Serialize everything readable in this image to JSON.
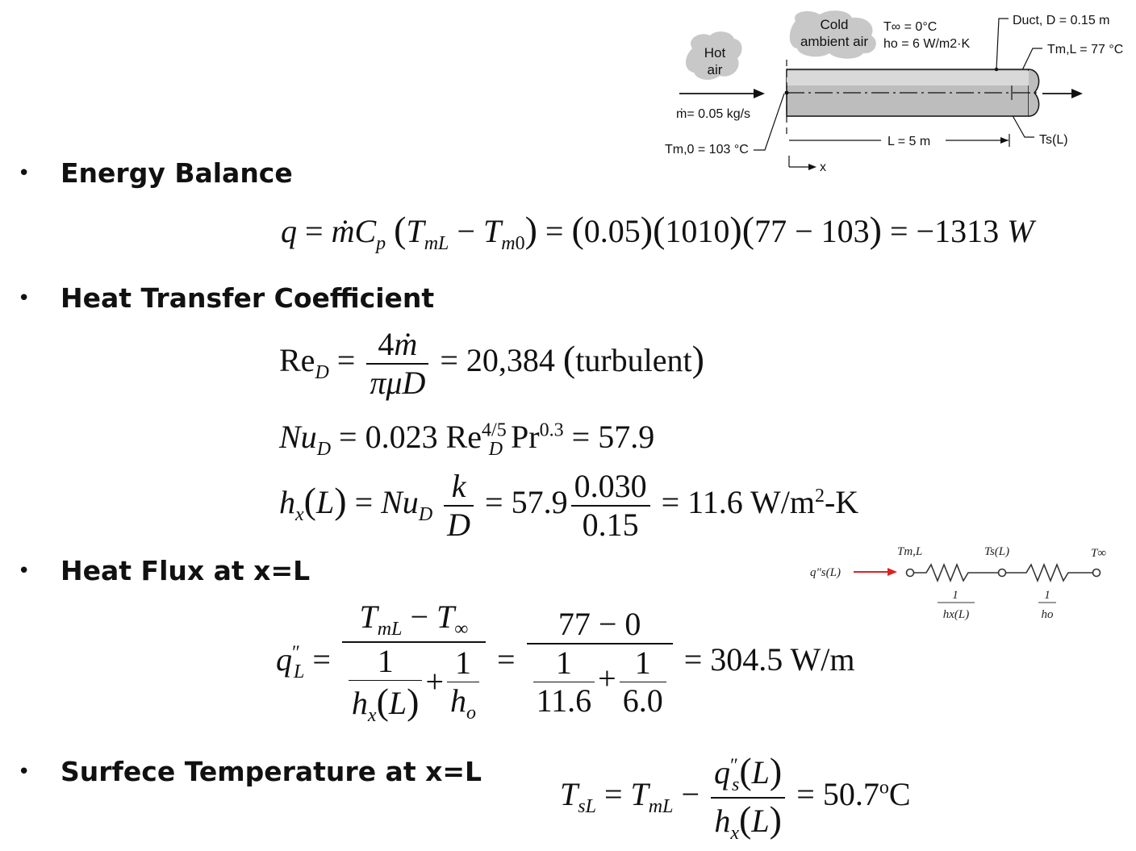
{
  "diagram": {
    "hot_air": [
      "Hot",
      "air"
    ],
    "cold_air": [
      "Cold",
      "ambient air"
    ],
    "t_inf": "T∞ = 0°C",
    "h_o": "ho = 6 W/m2·K",
    "duct": "Duct, D = 0.15  m",
    "tml": "Tm,L = 77 °C",
    "mdot": "ṁ= 0.05 kg/s",
    "tm0": "Tm,0 = 103 °C",
    "length": "L = 5 m",
    "ts": "Ts(L)",
    "x_axis": "x"
  },
  "circuit": {
    "flux": "q\"s(L)",
    "node1": "Tm,L",
    "node2": "Ts(L)",
    "node3": "T∞",
    "r1": "hx(L)",
    "r2": "ho",
    "one": "1"
  },
  "sections": [
    {
      "heading": "Energy Balance",
      "bullet": "•"
    },
    {
      "heading": "Heat Transfer Coefficient",
      "bullet": "•"
    },
    {
      "heading": "Heat Flux at x=L",
      "bullet": "•"
    },
    {
      "heading": "Surfece Temperature at x=L",
      "bullet": "•"
    }
  ],
  "equations": {
    "energy": "q = ṁCp (TmL − Tm0) = (0.05)(1010)(77 − 103) = −1313 W",
    "re": "ReD = 4ṁ / πμD = 20,384 (turbulent)",
    "nu": "NuD = 0.023 ReD^4/5 Pr^0.3 = 57.9",
    "h": "hx(L) = NuD k/D = 57.9 · 0.030/0.15 = 11.6 W/m2-K",
    "flux": "q\"L = (TmL − T∞) / (1/hx(L) + 1/ho) = (77 − 0) / (1/11.6 + 1/6.0) = 304.5 W/m",
    "ts": "TsL = TmL − q\"s(L)/hx(L) = 50.7°C"
  },
  "values": {
    "mdot_num": "0.05",
    "cp": "1010",
    "tml": "77",
    "tm0": "103",
    "q": "−1313",
    "re": "20,384",
    "turb": "turbulent",
    "nu_coef": "0.023",
    "nu_exp": "4/5",
    "pr_exp": "0.3",
    "nu": "57.9",
    "k": "0.030",
    "d": "0.15",
    "h": "11.6",
    "tinf_num": "0",
    "hx_den": "11.6",
    "ho_den": "6.0",
    "flux": "304.5",
    "ts": "50.7"
  }
}
